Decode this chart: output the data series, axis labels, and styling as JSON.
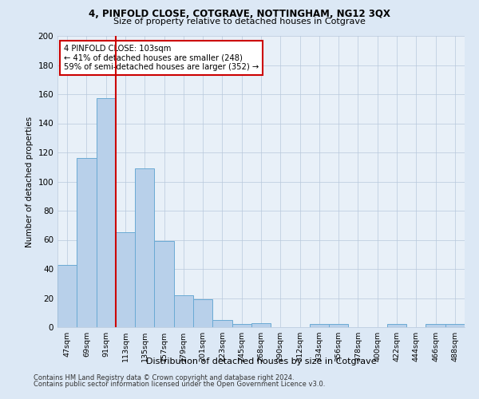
{
  "title1": "4, PINFOLD CLOSE, COTGRAVE, NOTTINGHAM, NG12 3QX",
  "title2": "Size of property relative to detached houses in Cotgrave",
  "xlabel": "Distribution of detached houses by size in Cotgrave",
  "ylabel": "Number of detached properties",
  "categories": [
    "47sqm",
    "69sqm",
    "91sqm",
    "113sqm",
    "135sqm",
    "157sqm",
    "179sqm",
    "201sqm",
    "223sqm",
    "245sqm",
    "268sqm",
    "290sqm",
    "312sqm",
    "334sqm",
    "356sqm",
    "378sqm",
    "400sqm",
    "422sqm",
    "444sqm",
    "466sqm",
    "488sqm"
  ],
  "values": [
    43,
    116,
    157,
    65,
    109,
    59,
    22,
    19,
    5,
    2,
    3,
    0,
    0,
    2,
    2,
    0,
    0,
    2,
    0,
    2,
    2
  ],
  "bar_color": "#b8d0ea",
  "bar_edge_color": "#6aaad4",
  "vline_x": 2.5,
  "vline_color": "#cc0000",
  "annotation_text": "4 PINFOLD CLOSE: 103sqm\n← 41% of detached houses are smaller (248)\n59% of semi-detached houses are larger (352) →",
  "annotation_box_color": "#ffffff",
  "annotation_box_edge": "#cc0000",
  "ylim": [
    0,
    200
  ],
  "yticks": [
    0,
    20,
    40,
    60,
    80,
    100,
    120,
    140,
    160,
    180,
    200
  ],
  "footer1": "Contains HM Land Registry data © Crown copyright and database right 2024.",
  "footer2": "Contains public sector information licensed under the Open Government Licence v3.0.",
  "bg_color": "#dce8f5",
  "plot_bg_color": "#e8f0f8"
}
